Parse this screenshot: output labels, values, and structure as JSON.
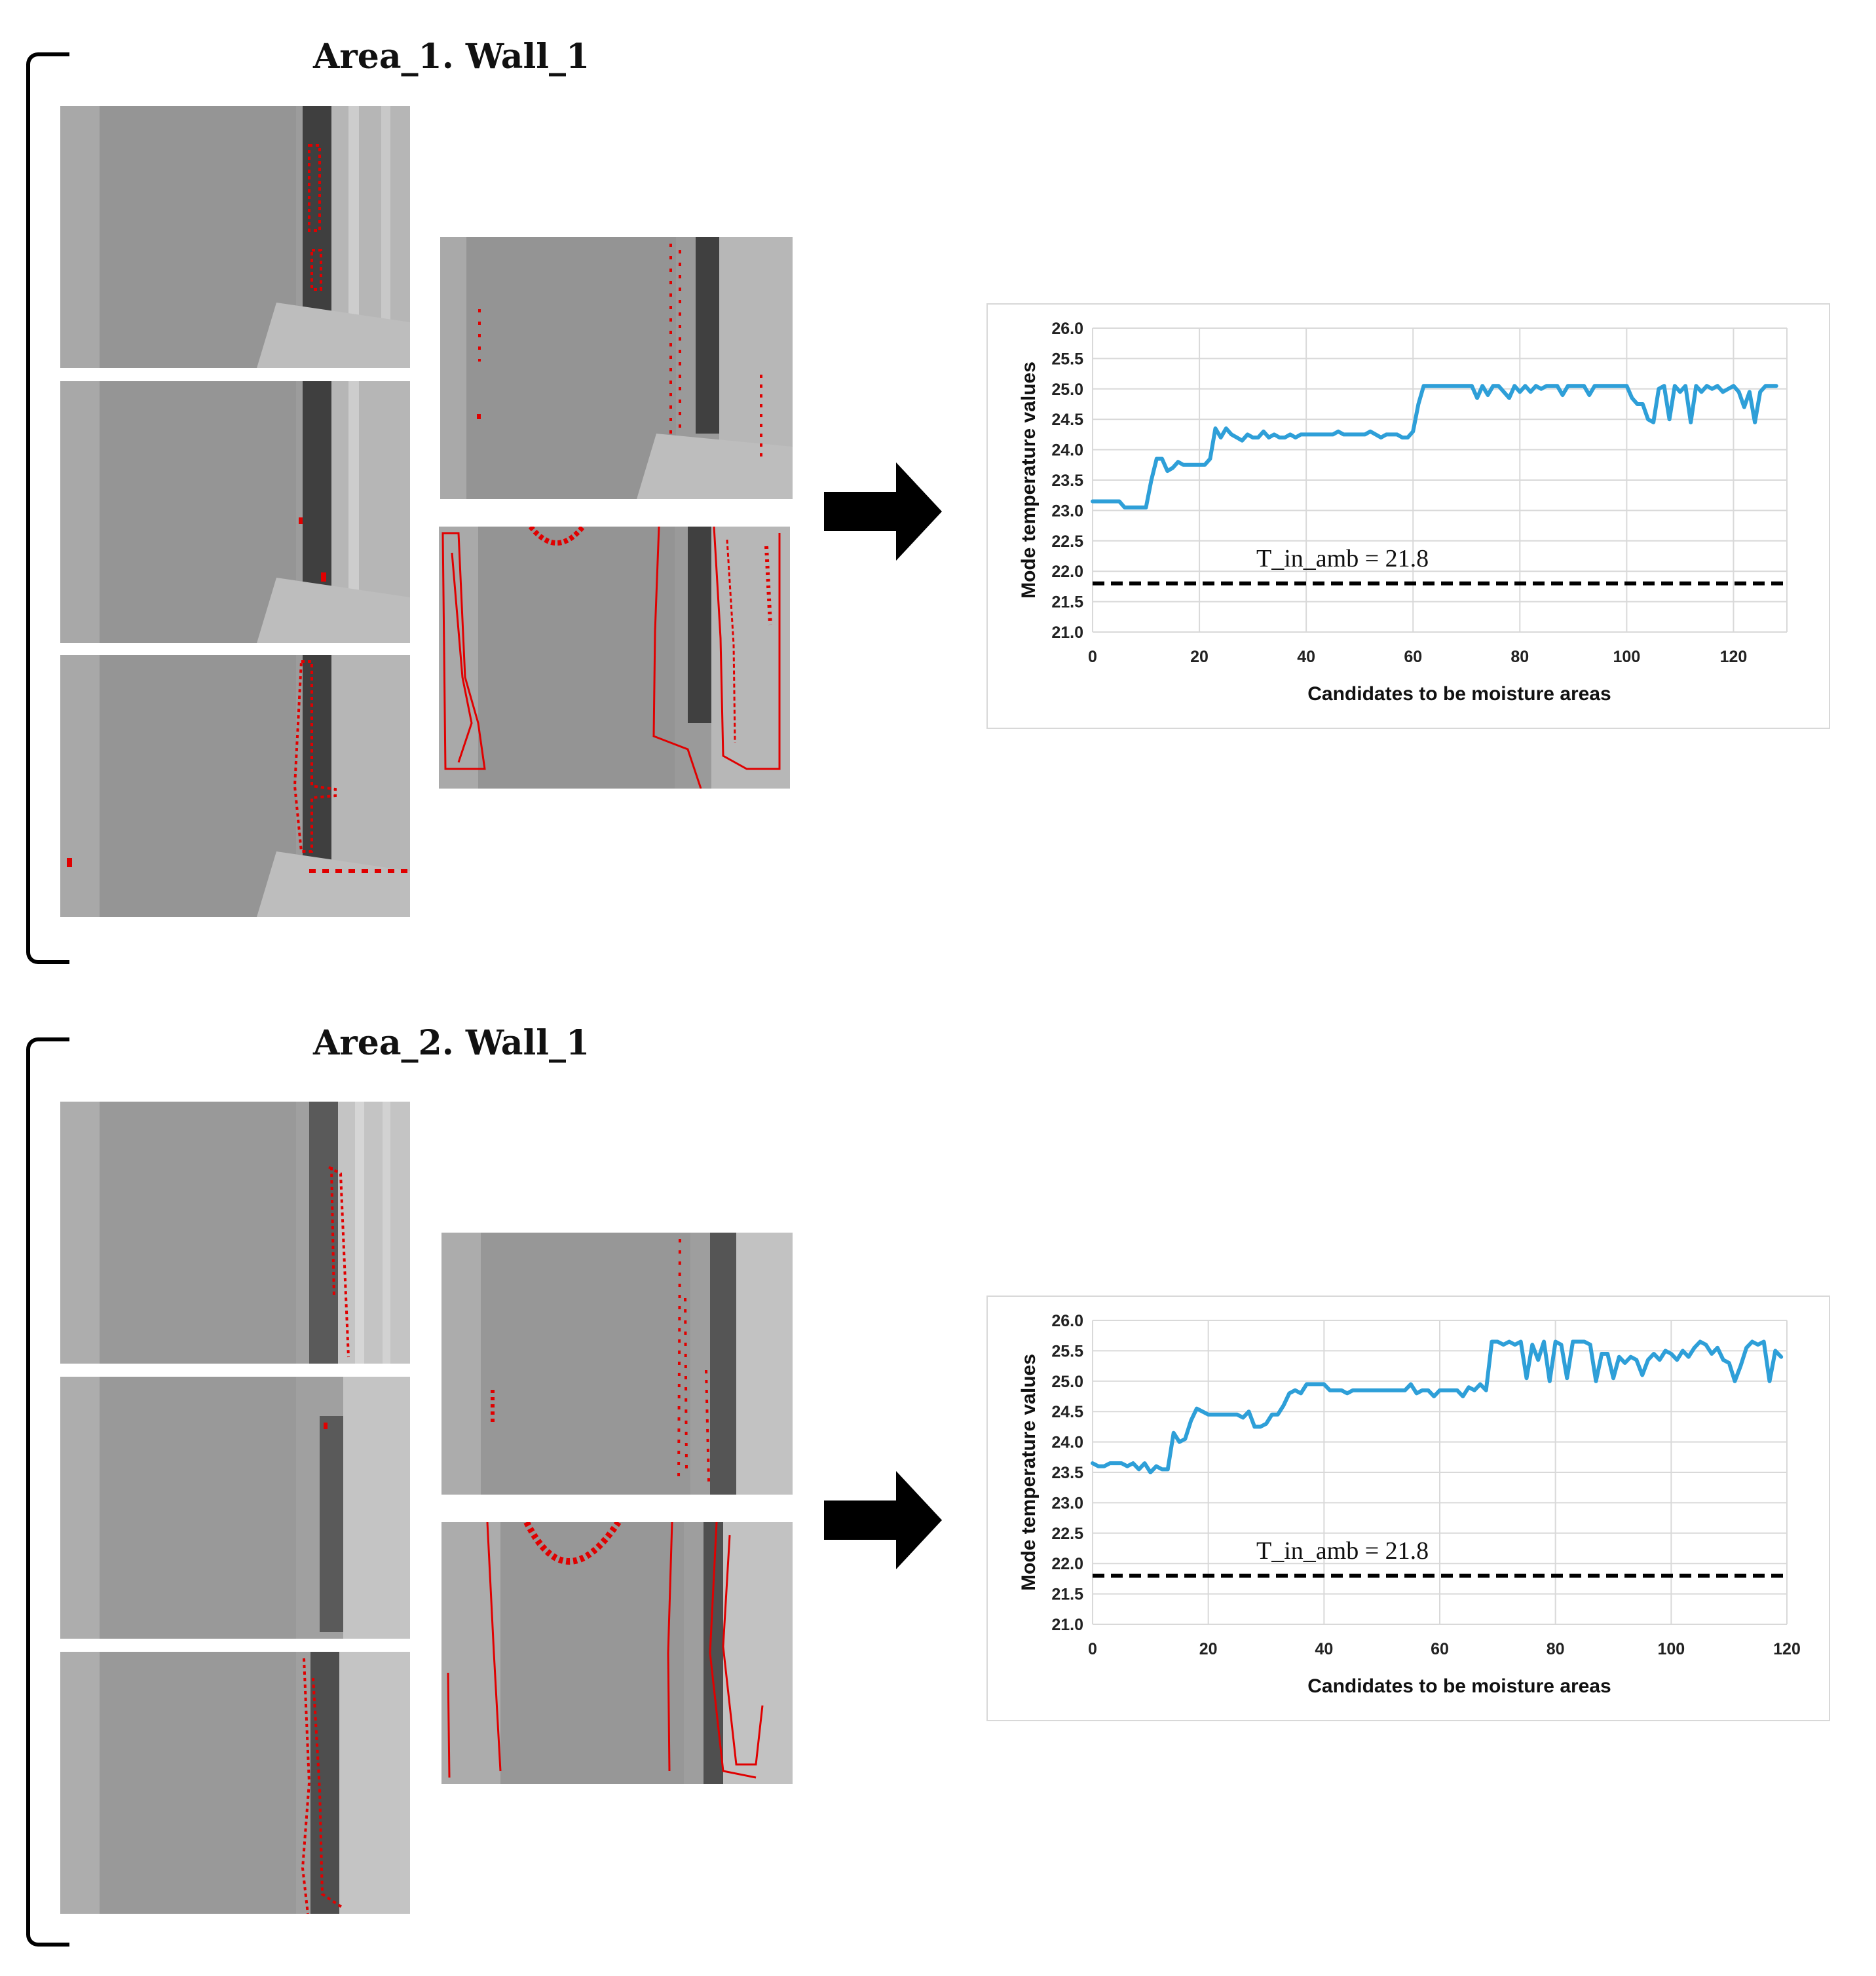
{
  "panels": [
    {
      "title": "Area_1. Wall_1"
    },
    {
      "title": "Area_2. Wall_1"
    }
  ],
  "colors": {
    "series": "#2e9fd8",
    "contour": "#e00000",
    "reference": "#000000"
  },
  "chart_data": [
    {
      "type": "line",
      "title": "",
      "xlabel": "Candidates to be moisture areas",
      "ylabel": "Mode temperature values",
      "xlim": [
        0,
        130
      ],
      "ylim": [
        21.0,
        26.0
      ],
      "xticks": [
        0,
        20,
        40,
        60,
        80,
        100,
        120
      ],
      "yticks": [
        21.0,
        21.5,
        22.0,
        22.5,
        23.0,
        23.5,
        24.0,
        24.5,
        25.0,
        25.5,
        26.0
      ],
      "grid": true,
      "reference_line": {
        "label": "T_in_amb = 21.8",
        "value": 21.8
      },
      "series": [
        {
          "name": "",
          "x": [
            0,
            1,
            2,
            3,
            4,
            5,
            6,
            7,
            8,
            9,
            10,
            11,
            12,
            13,
            14,
            15,
            16,
            17,
            18,
            19,
            20,
            21,
            22,
            23,
            24,
            25,
            26,
            27,
            28,
            29,
            30,
            31,
            32,
            33,
            34,
            35,
            36,
            37,
            38,
            39,
            40,
            41,
            42,
            43,
            44,
            45,
            46,
            47,
            48,
            49,
            50,
            51,
            52,
            53,
            54,
            55,
            56,
            57,
            58,
            59,
            60,
            61,
            62,
            63,
            64,
            65,
            66,
            67,
            68,
            69,
            70,
            71,
            72,
            73,
            74,
            75,
            76,
            77,
            78,
            79,
            80,
            81,
            82,
            83,
            84,
            85,
            86,
            87,
            88,
            89,
            90,
            91,
            92,
            93,
            94,
            95,
            96,
            97,
            98,
            99,
            100,
            101,
            102,
            103,
            104,
            105,
            106,
            107,
            108,
            109,
            110,
            111,
            112,
            113,
            114,
            115,
            116,
            117,
            118,
            119,
            120,
            121,
            122,
            123,
            124,
            125,
            126,
            127,
            128
          ],
          "values": [
            23.15,
            23.15,
            23.15,
            23.15,
            23.15,
            23.15,
            23.05,
            23.05,
            23.05,
            23.05,
            23.05,
            23.5,
            23.85,
            23.85,
            23.65,
            23.7,
            23.8,
            23.75,
            23.75,
            23.75,
            23.75,
            23.75,
            23.85,
            24.35,
            24.2,
            24.35,
            24.25,
            24.2,
            24.15,
            24.25,
            24.2,
            24.2,
            24.3,
            24.2,
            24.25,
            24.2,
            24.2,
            24.25,
            24.2,
            24.25,
            24.25,
            24.25,
            24.25,
            24.25,
            24.25,
            24.25,
            24.3,
            24.25,
            24.25,
            24.25,
            24.25,
            24.25,
            24.3,
            24.25,
            24.2,
            24.25,
            24.25,
            24.25,
            24.2,
            24.2,
            24.3,
            24.75,
            25.05,
            25.05,
            25.05,
            25.05,
            25.05,
            25.05,
            25.05,
            25.05,
            25.05,
            25.05,
            24.85,
            25.05,
            24.9,
            25.05,
            25.05,
            24.95,
            24.85,
            25.05,
            24.95,
            25.05,
            24.95,
            25.05,
            25.0,
            25.05,
            25.05,
            25.05,
            24.9,
            25.05,
            25.05,
            25.05,
            25.05,
            24.9,
            25.05,
            25.05,
            25.05,
            25.05,
            25.05,
            25.05,
            25.05,
            24.85,
            24.75,
            24.75,
            24.5,
            24.45,
            25.0,
            25.05,
            24.5,
            25.05,
            24.95,
            25.05,
            24.45,
            25.05,
            24.95,
            25.05,
            25.0,
            25.05,
            24.95,
            25.0,
            25.05,
            24.95,
            24.7,
            24.95,
            24.45,
            24.95,
            25.05,
            25.05,
            25.05
          ]
        }
      ]
    },
    {
      "type": "line",
      "title": "",
      "xlabel": "Candidates to be moisture areas",
      "ylabel": "Mode temperature values",
      "xlim": [
        0,
        120
      ],
      "ylim": [
        21.0,
        26.0
      ],
      "xticks": [
        0,
        20,
        40,
        60,
        80,
        100,
        120
      ],
      "yticks": [
        21.0,
        21.5,
        22.0,
        22.5,
        23.0,
        23.5,
        24.0,
        24.5,
        25.0,
        25.5,
        26.0
      ],
      "grid": true,
      "reference_line": {
        "label": "T_in_amb = 21.8",
        "value": 21.8
      },
      "series": [
        {
          "name": "",
          "x": [
            0,
            1,
            2,
            3,
            4,
            5,
            6,
            7,
            8,
            9,
            10,
            11,
            12,
            13,
            14,
            15,
            16,
            17,
            18,
            19,
            20,
            21,
            22,
            23,
            24,
            25,
            26,
            27,
            28,
            29,
            30,
            31,
            32,
            33,
            34,
            35,
            36,
            37,
            38,
            39,
            40,
            41,
            42,
            43,
            44,
            45,
            46,
            47,
            48,
            49,
            50,
            51,
            52,
            53,
            54,
            55,
            56,
            57,
            58,
            59,
            60,
            61,
            62,
            63,
            64,
            65,
            66,
            67,
            68,
            69,
            70,
            71,
            72,
            73,
            74,
            75,
            76,
            77,
            78,
            79,
            80,
            81,
            82,
            83,
            84,
            85,
            86,
            87,
            88,
            89,
            90,
            91,
            92,
            93,
            94,
            95,
            96,
            97,
            98,
            99,
            100,
            101,
            102,
            103,
            104,
            105,
            106,
            107,
            108,
            109,
            110,
            111,
            112,
            113,
            114,
            115,
            116,
            117,
            118,
            119
          ],
          "values": [
            23.65,
            23.6,
            23.6,
            23.65,
            23.65,
            23.65,
            23.6,
            23.65,
            23.55,
            23.65,
            23.5,
            23.6,
            23.55,
            23.55,
            24.15,
            24.0,
            24.05,
            24.35,
            24.55,
            24.5,
            24.45,
            24.45,
            24.45,
            24.45,
            24.45,
            24.45,
            24.4,
            24.5,
            24.25,
            24.25,
            24.3,
            24.45,
            24.45,
            24.6,
            24.8,
            24.85,
            24.8,
            24.95,
            24.95,
            24.95,
            24.95,
            24.85,
            24.85,
            24.85,
            24.8,
            24.85,
            24.85,
            24.85,
            24.85,
            24.85,
            24.85,
            24.85,
            24.85,
            24.85,
            24.85,
            24.95,
            24.8,
            24.85,
            24.85,
            24.75,
            24.85,
            24.85,
            24.85,
            24.85,
            24.75,
            24.9,
            24.85,
            24.95,
            24.85,
            25.65,
            25.65,
            25.6,
            25.65,
            25.6,
            25.65,
            25.05,
            25.6,
            25.35,
            25.65,
            25.0,
            25.65,
            25.6,
            25.05,
            25.65,
            25.65,
            25.65,
            25.6,
            25.0,
            25.45,
            25.45,
            25.05,
            25.4,
            25.3,
            25.4,
            25.35,
            25.1,
            25.35,
            25.45,
            25.35,
            25.5,
            25.45,
            25.35,
            25.5,
            25.4,
            25.55,
            25.65,
            25.6,
            25.45,
            25.55,
            25.35,
            25.3,
            25.0,
            25.25,
            25.55,
            25.65,
            25.6,
            25.65,
            25.0,
            25.5,
            25.4
          ]
        }
      ]
    }
  ]
}
